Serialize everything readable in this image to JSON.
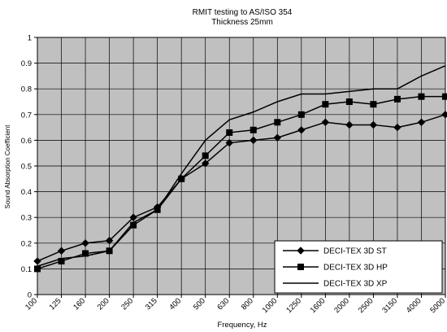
{
  "chart_data": {
    "type": "line",
    "title": "RMIT testing to AS/ISO 354",
    "subtitle": "Thickness 25mm",
    "xlabel": "Frequency, Hz",
    "ylabel": "Sound Absorption Coefficient",
    "categories": [
      "100",
      "125",
      "160",
      "200",
      "250",
      "315",
      "400",
      "500",
      "630",
      "800",
      "1000",
      "1250",
      "1600",
      "2000",
      "2500",
      "3150",
      "4000",
      "5000"
    ],
    "ylim": [
      0,
      1
    ],
    "yticks": [
      "0",
      "0.1",
      "0.2",
      "0.3",
      "0.4",
      "0.5",
      "0.6",
      "0.7",
      "0.8",
      "0.9",
      "1"
    ],
    "grid": true,
    "legend_position": "bottom-right",
    "plot_background": "#c0c0c0",
    "series": [
      {
        "name": "DECI-TEX 3D ST",
        "marker": "diamond",
        "color": "#000000",
        "values": [
          0.13,
          0.17,
          0.2,
          0.21,
          0.3,
          0.34,
          0.45,
          0.51,
          0.59,
          0.6,
          0.61,
          0.64,
          0.67,
          0.66,
          0.66,
          0.65,
          0.67,
          0.7
        ]
      },
      {
        "name": "DECI-TEX 3D HP",
        "marker": "square",
        "color": "#000000",
        "values": [
          0.1,
          0.13,
          0.16,
          0.17,
          0.27,
          0.33,
          0.45,
          0.54,
          0.63,
          0.64,
          0.67,
          0.7,
          0.74,
          0.75,
          0.74,
          0.76,
          0.77,
          0.77
        ]
      },
      {
        "name": "DECI-TEX 3D XP",
        "marker": "none",
        "color": "#000000",
        "values": [
          0.11,
          0.14,
          0.15,
          0.17,
          0.28,
          0.33,
          0.47,
          0.6,
          0.68,
          0.71,
          0.75,
          0.78,
          0.78,
          0.79,
          0.8,
          0.8,
          0.85,
          0.89
        ]
      }
    ]
  }
}
